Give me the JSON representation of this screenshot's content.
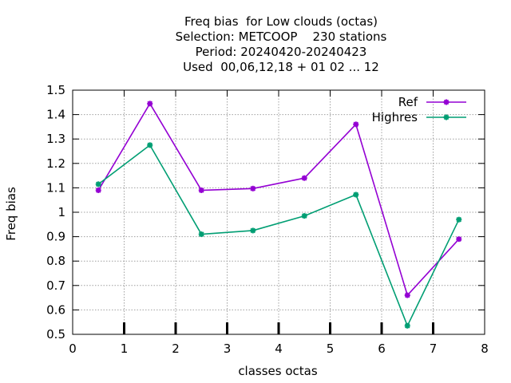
{
  "chart_data": {
    "type": "line",
    "title_lines": [
      "Freq bias  for Low clouds (octas)",
      "Selection: METCOOP    230 stations",
      "Period: 20240420-20240423",
      "Used  00,06,12,18 + 01 02 ... 12"
    ],
    "xlabel": "classes octas",
    "ylabel": "Freq bias",
    "xlim": [
      0,
      8
    ],
    "ylim": [
      0.5,
      1.5
    ],
    "xticks": [
      "0",
      "1",
      "2",
      "3",
      "4",
      "5",
      "6",
      "7",
      "8"
    ],
    "yticks": [
      "0.5",
      "0.6",
      "0.7",
      "0.8",
      "0.9",
      "1",
      "1.1",
      "1.2",
      "1.3",
      "1.4",
      "1.5"
    ],
    "grid": true,
    "legend_position": "top-right",
    "x": [
      0.5,
      1.5,
      2.5,
      3.5,
      4.5,
      5.5,
      6.5,
      7.5
    ],
    "series": [
      {
        "name": "Ref",
        "color": "#9400d3",
        "values": [
          1.09,
          1.445,
          1.09,
          1.097,
          1.14,
          1.36,
          0.66,
          0.89
        ]
      },
      {
        "name": "Highres",
        "color": "#009e73",
        "values": [
          1.115,
          1.275,
          0.91,
          0.925,
          0.985,
          1.072,
          0.535,
          0.97
        ]
      }
    ]
  }
}
